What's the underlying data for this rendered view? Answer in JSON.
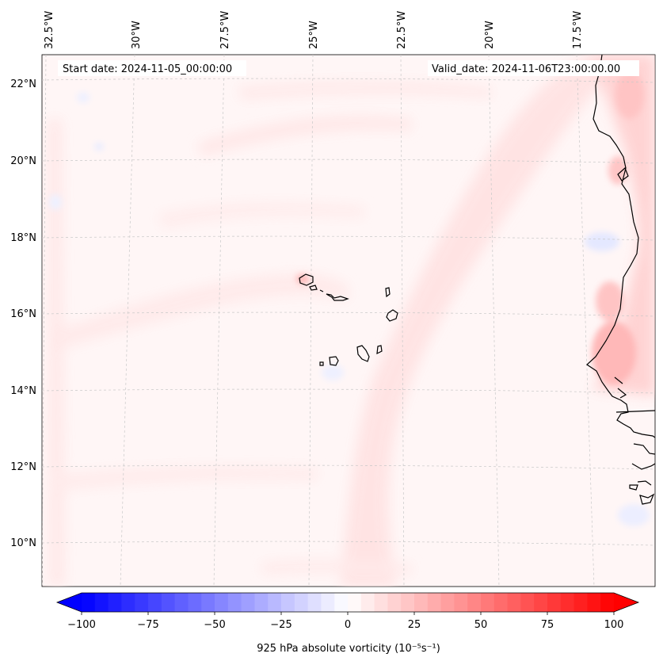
{
  "map": {
    "title_left": "Start date: 2024-11-05_00:00:00",
    "title_right": "Valid_date: 2024-11-06T23:00:00.00",
    "lon_labels": [
      "32.5°W",
      "30°W",
      "27.5°W",
      "25°W",
      "22.5°W",
      "20°W",
      "17.5°W"
    ],
    "lat_labels": [
      "22°N",
      "20°N",
      "18°N",
      "16°N",
      "14°N",
      "12°N",
      "10°N"
    ],
    "islands": [
      "Santo Antão",
      "São Vicente",
      "Santa Luzia",
      "São Nicolau",
      "Sal",
      "Boa Vista",
      "Maio",
      "Santiago",
      "Fogo",
      "Brava"
    ],
    "field": "925 hPa absolute vorticity"
  },
  "colorbar": {
    "label": "925 hPa absolute vorticity (10⁻⁵s⁻¹)",
    "ticks": [
      "−100",
      "−75",
      "−50",
      "−25",
      "0",
      "25",
      "50",
      "75",
      "100"
    ],
    "vmin": -100,
    "vmax": 100,
    "levels": 40,
    "colormap": "bwr"
  }
}
